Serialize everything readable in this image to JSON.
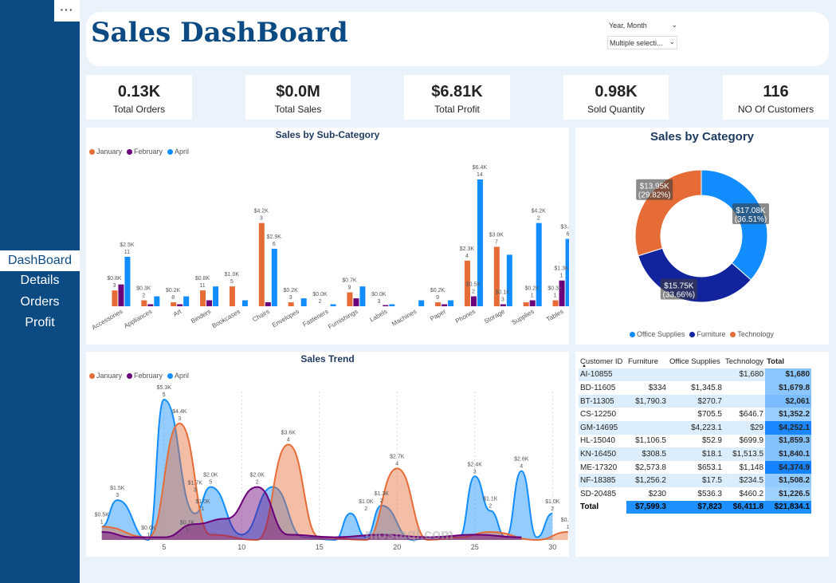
{
  "sidebar": {
    "more_label": "···",
    "items": [
      "DashBoard",
      "Details",
      "Orders",
      "Profit"
    ]
  },
  "header": {
    "title": "Sales DashBoard",
    "slicer_label": "Year, Month",
    "slicer_value": "Multiple selecti..."
  },
  "kpis": [
    {
      "value": "0.13K",
      "label": "Total Orders"
    },
    {
      "value": "$0.0M",
      "label": "Total Sales"
    },
    {
      "value": "$6.81K",
      "label": "Total Profit"
    },
    {
      "value": "0.98K",
      "label": "Sold Quantity"
    },
    {
      "value": "116",
      "label": "NO Of Customers"
    }
  ],
  "colors": {
    "january": "#e66c37",
    "february": "#6b007b",
    "april": "#118dff",
    "office_supplies": "#118dff",
    "furniture": "#12239e",
    "technology": "#e66c37",
    "brand": "#0c4a83"
  },
  "chart_data": [
    {
      "type": "bar",
      "title": "Sales by Sub-Category",
      "categories": [
        "Accessories",
        "Appliances",
        "Art",
        "Binders",
        "Bookcases",
        "Chairs",
        "Envelopes",
        "Fasteners",
        "Furnishings",
        "Labels",
        "Machines",
        "Paper",
        "Phones",
        "Storage",
        "Supplies",
        "Tables"
      ],
      "series": [
        {
          "name": "January",
          "values": [
            0.8,
            0.3,
            0.2,
            0.8,
            1.0,
            4.2,
            0.2,
            0.0,
            0.7,
            0.0,
            0,
            0.2,
            2.3,
            3.0,
            0.2,
            0.3
          ]
        },
        {
          "name": "February",
          "values": [
            1.1,
            0.1,
            0.1,
            0.3,
            0,
            0.2,
            0,
            0.0,
            0.4,
            0.05,
            0,
            0.1,
            0.5,
            0.1,
            0.3,
            1.3
          ]
        },
        {
          "name": "April",
          "values": [
            2.5,
            0.5,
            0.5,
            1.0,
            0.3,
            2.9,
            0.4,
            0.1,
            1.0,
            0.1,
            0.3,
            0.3,
            6.4,
            2.6,
            4.2,
            3.4
          ]
        }
      ],
      "data_labels": [
        {
          "text": "$0.8K",
          "count": "3"
        },
        {
          "text": "$2.5K",
          "count": "11"
        },
        {
          "text": "$0.3K",
          "count": "2"
        },
        {
          "text": "$0.2K",
          "count": "8"
        },
        {
          "text": "$0.8K",
          "count": "11"
        },
        {
          "text": "$1.0K",
          "count": "5"
        },
        {
          "text": "$4.2K",
          "count": "3"
        },
        {
          "text": "$2.9K",
          "count": "6"
        },
        {
          "text": "$0.2K",
          "count": "3"
        },
        {
          "text": "$0.0K",
          "count": "2"
        },
        {
          "text": "$0.7K",
          "count": "9"
        },
        {
          "text": "$0.0K",
          "count": "3"
        },
        {
          "text": "$0.2K",
          "count": "9"
        },
        {
          "text": "$2.3K",
          "count": "4"
        },
        {
          "text": "$0.5K",
          "count": "2"
        },
        {
          "text": "$6.4K",
          "count": "14"
        },
        {
          "text": "$3.0K",
          "count": "7"
        },
        {
          "text": "$0.1K",
          "count": "3"
        },
        {
          "text": "$0.2K",
          "count": "1"
        },
        {
          "text": "$4.2K",
          "count": "2"
        },
        {
          "text": "$0.3K",
          "count": "1"
        },
        {
          "text": "$1.3K",
          "count": "1"
        },
        {
          "text": "$3.4K",
          "count": "6"
        }
      ]
    },
    {
      "type": "pie",
      "title": "Sales by Category",
      "categories": [
        "Office Supplies",
        "Furniture",
        "Technology"
      ],
      "values": [
        17.08,
        15.75,
        13.95
      ],
      "labels": [
        "$17.08K (36.51%)",
        "$15.75K (33.66%)",
        "$13.95K (29.82%)"
      ]
    },
    {
      "type": "area",
      "title": "Sales Trend",
      "x_ticks": [
        "5",
        "10",
        "15",
        "20",
        "25",
        "30"
      ],
      "series": [
        {
          "name": "January",
          "x": [
            1,
            4,
            6,
            8,
            11,
            13,
            15,
            18,
            20,
            22,
            24,
            26,
            29,
            31
          ],
          "values": [
            0.5,
            0.1,
            4.4,
            0.2,
            0.0,
            3.6,
            0.1,
            0.0,
            2.7,
            0.0,
            0.1,
            0.3,
            0.0,
            0.3
          ]
        },
        {
          "name": "February",
          "x": [
            1,
            3,
            5,
            7,
            9,
            11,
            13,
            16,
            19,
            22,
            25,
            28
          ],
          "values": [
            0.3,
            0.1,
            0.1,
            0.6,
            0.8,
            2.0,
            0.2,
            0.1,
            0.2,
            0.1,
            0.2,
            0.1
          ]
        },
        {
          "name": "April",
          "x": [
            1,
            2,
            4,
            5,
            7,
            8,
            10,
            12,
            14,
            16,
            17,
            18,
            19,
            21,
            22,
            24,
            25,
            26,
            27,
            28,
            29,
            30
          ],
          "values": [
            0.5,
            1.5,
            0.0,
            5.3,
            1.0,
            2.0,
            0.2,
            2.0,
            0.1,
            0.0,
            1.0,
            0.1,
            1.3,
            0.0,
            0.1,
            0.1,
            2.4,
            1.1,
            0.1,
            2.6,
            0.1,
            1.0
          ]
        }
      ],
      "data_labels": [
        {
          "text": "$1.5K",
          "count": "3"
        },
        {
          "text": "$5.3K",
          "count": "5"
        },
        {
          "text": "$4.4K",
          "count": "3"
        },
        {
          "text": "$1.7K",
          "count": "3"
        },
        {
          "text": "$1.0K",
          "count": "1"
        },
        {
          "text": "$2.0K",
          "count": "5"
        },
        {
          "text": "$2.0K",
          "count": "2"
        },
        {
          "text": "$3.6K",
          "count": "4"
        },
        {
          "text": "$2.7K",
          "count": "4"
        },
        {
          "text": "$1.0K",
          "count": "2"
        },
        {
          "text": "$1.3K",
          "count": "2"
        },
        {
          "text": "$2.4K",
          "count": "3"
        },
        {
          "text": "$1.1K",
          "count": "2"
        },
        {
          "text": "$2.6K",
          "count": "4"
        },
        {
          "text": "$1.0K",
          "count": "2"
        },
        {
          "text": "$0.3K",
          "count": "1"
        },
        {
          "text": "$0.5K",
          "count": "1"
        },
        {
          "text": "$0.0K",
          "count": "1"
        },
        {
          "text": "$0.2K",
          "count": "1"
        }
      ]
    }
  ],
  "legend_months": [
    "January",
    "February",
    "April"
  ],
  "table": {
    "headers": [
      "Customer ID",
      "Furniture",
      "Office Supplies",
      "Technology",
      "Total"
    ],
    "rows": [
      [
        "AI-10855",
        "",
        "",
        "$1,680",
        "$1,680"
      ],
      [
        "BD-11605",
        "$334",
        "$1,345.8",
        "",
        "$1,679.8"
      ],
      [
        "BT-11305",
        "$1,790.3",
        "$270.7",
        "",
        "$2,061"
      ],
      [
        "CS-12250",
        "",
        "$705.5",
        "$646.7",
        "$1,352.2"
      ],
      [
        "GM-14695",
        "",
        "$4,223.1",
        "$29",
        "$4,252.1"
      ],
      [
        "HL-15040",
        "$1,106.5",
        "$52.9",
        "$699.9",
        "$1,859.3"
      ],
      [
        "KN-16450",
        "$308.5",
        "$18.1",
        "$1,513.5",
        "$1,840.1"
      ],
      [
        "ME-17320",
        "$2,573.8",
        "$653.1",
        "$1,148",
        "$4,374.9"
      ],
      [
        "NF-18385",
        "$1,256.2",
        "$17.5",
        "$234.5",
        "$1,508.2"
      ],
      [
        "SD-20485",
        "$230",
        "$536.3",
        "$460.2",
        "$1,226.5"
      ]
    ],
    "total": [
      "Total",
      "$7,599.3",
      "$7,823",
      "$6,411.8",
      "$21,834.1"
    ]
  },
  "watermark": "mostaql.com"
}
